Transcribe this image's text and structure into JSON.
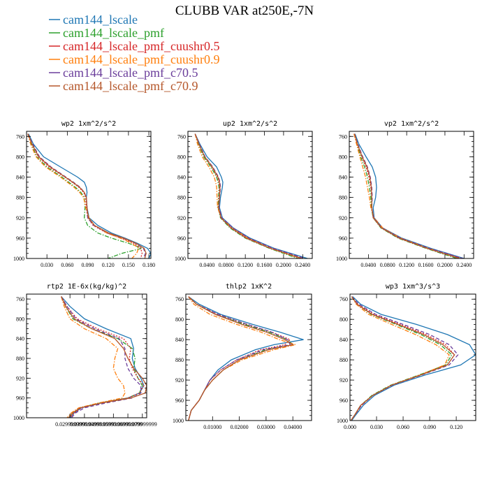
{
  "figure_title": "CLUBB VAR at250E,-7N",
  "legend": [
    {
      "name": "cam144_lscale",
      "color": "#1f77b4",
      "dash": "solid"
    },
    {
      "name": "cam144_lscale_pmf",
      "color": "#2ca02c",
      "dash": "dashdot"
    },
    {
      "name": "cam144_lscale_pmf_cuushr0.5",
      "color": "#d62728",
      "dash": "dot"
    },
    {
      "name": "cam144_lscale_pmf_cuushr0.9",
      "color": "#ff7f0e",
      "dash": "dashdot"
    },
    {
      "name": "cam144_lscale_pmf_c70.5",
      "color": "#6a3d9a",
      "dash": "dash"
    },
    {
      "name": "cam144_lscale_pmf_c70.9",
      "color": "#b5572b",
      "dash": "solid"
    }
  ],
  "chart_data": [
    {
      "type": "line",
      "title": "wp2  1xm^2/s^2",
      "ylim": [
        1000,
        750
      ],
      "yticks": [
        "760",
        "800",
        "840",
        "880",
        "920",
        "960",
        "1000"
      ],
      "xlim": [
        0.0,
        0.183
      ],
      "xticks": [
        0.03,
        0.06,
        0.09,
        0.12,
        0.15,
        0.18
      ],
      "xtick_labels": [
        "0.030",
        "0.060",
        "0.090",
        "0.120",
        "0.150",
        "0.180"
      ],
      "levels": [
        755,
        775,
        800,
        820,
        840,
        850,
        860,
        870,
        880,
        900,
        920,
        935,
        950,
        960,
        970,
        980,
        990,
        1000
      ],
      "series": [
        {
          "name": "cam144_lscale",
          "values": [
            0.003,
            0.01,
            0.025,
            0.05,
            0.075,
            0.085,
            0.088,
            0.089,
            0.088,
            0.089,
            0.092,
            0.105,
            0.125,
            0.145,
            0.163,
            0.178,
            0.183,
            0.18
          ]
        },
        {
          "name": "cam144_lscale_pmf",
          "values": [
            0.002,
            0.007,
            0.015,
            0.03,
            0.052,
            0.062,
            0.072,
            0.08,
            0.085,
            0.086,
            0.085,
            0.09,
            0.105,
            0.125,
            0.15,
            0.17,
            0.14,
            0.12
          ]
        },
        {
          "name": "cam144_lscale_pmf_cuushr0.5",
          "values": [
            0.002,
            0.008,
            0.017,
            0.033,
            0.056,
            0.067,
            0.077,
            0.084,
            0.087,
            0.088,
            0.09,
            0.098,
            0.118,
            0.14,
            0.158,
            0.168,
            0.17,
            0.168
          ]
        },
        {
          "name": "cam144_lscale_pmf_cuushr0.9",
          "values": [
            0.002,
            0.006,
            0.014,
            0.028,
            0.05,
            0.06,
            0.07,
            0.078,
            0.084,
            0.087,
            0.092,
            0.1,
            0.118,
            0.138,
            0.155,
            0.165,
            0.162,
            0.155
          ]
        },
        {
          "name": "cam144_lscale_pmf_c70.5",
          "values": [
            0.002,
            0.009,
            0.019,
            0.036,
            0.058,
            0.069,
            0.079,
            0.085,
            0.088,
            0.089,
            0.09,
            0.099,
            0.12,
            0.142,
            0.16,
            0.172,
            0.175,
            0.172
          ]
        },
        {
          "name": "cam144_lscale_pmf_c70.9",
          "values": [
            0.002,
            0.008,
            0.018,
            0.035,
            0.057,
            0.068,
            0.078,
            0.085,
            0.088,
            0.089,
            0.091,
            0.1,
            0.121,
            0.143,
            0.161,
            0.173,
            0.176,
            0.174
          ]
        }
      ]
    },
    {
      "type": "line",
      "title": "up2  1xm^2/s^2",
      "ylim": [
        1000,
        750
      ],
      "yticks": [
        "760",
        "800",
        "840",
        "880",
        "920",
        "960",
        "1000"
      ],
      "xlim": [
        0.0,
        0.26
      ],
      "xticks": [
        0.04,
        0.08,
        0.12,
        0.16,
        0.2,
        0.24
      ],
      "xtick_labels": [
        "0.0400",
        "0.0800",
        "0.1200",
        "0.1600",
        "0.2000",
        "0.2400"
      ],
      "levels": [
        755,
        775,
        800,
        820,
        840,
        850,
        860,
        880,
        900,
        920,
        940,
        960,
        980,
        1000
      ],
      "series": [
        {
          "name": "cam144_lscale",
          "values": [
            0.015,
            0.025,
            0.04,
            0.06,
            0.07,
            0.073,
            0.072,
            0.068,
            0.066,
            0.072,
            0.095,
            0.13,
            0.18,
            0.25
          ]
        },
        {
          "name": "cam144_lscale_pmf",
          "values": [
            0.015,
            0.022,
            0.033,
            0.048,
            0.06,
            0.063,
            0.065,
            0.064,
            0.063,
            0.068,
            0.088,
            0.12,
            0.17,
            0.23
          ]
        },
        {
          "name": "cam144_lscale_pmf_cuushr0.5",
          "values": [
            0.015,
            0.023,
            0.035,
            0.05,
            0.062,
            0.065,
            0.066,
            0.065,
            0.064,
            0.07,
            0.092,
            0.125,
            0.175,
            0.24
          ]
        },
        {
          "name": "cam144_lscale_pmf_cuushr0.9",
          "values": [
            0.015,
            0.02,
            0.03,
            0.044,
            0.055,
            0.058,
            0.06,
            0.061,
            0.062,
            0.07,
            0.093,
            0.126,
            0.172,
            0.235
          ]
        },
        {
          "name": "cam144_lscale_pmf_c70.5",
          "values": [
            0.015,
            0.024,
            0.036,
            0.052,
            0.064,
            0.067,
            0.068,
            0.066,
            0.065,
            0.071,
            0.094,
            0.128,
            0.178,
            0.245
          ]
        },
        {
          "name": "cam144_lscale_pmf_c70.9",
          "values": [
            0.015,
            0.023,
            0.035,
            0.051,
            0.063,
            0.066,
            0.067,
            0.066,
            0.064,
            0.069,
            0.09,
            0.122,
            0.172,
            0.238
          ]
        }
      ]
    },
    {
      "type": "line",
      "title": "vp2  1xm^2/s^2",
      "ylim": [
        1000,
        750
      ],
      "yticks": [
        "760",
        "800",
        "840",
        "880",
        "920",
        "960",
        "1000"
      ],
      "xlim": [
        0.0,
        0.26
      ],
      "xticks": [
        0.04,
        0.08,
        0.12,
        0.16,
        0.2,
        0.24
      ],
      "xtick_labels": [
        "0.0400",
        "0.0800",
        "0.1200",
        "0.1600",
        "0.2000",
        "0.2400"
      ],
      "levels": [
        755,
        775,
        800,
        820,
        840,
        860,
        880,
        900,
        920,
        940,
        960,
        980,
        1000
      ],
      "series": [
        {
          "name": "cam144_lscale",
          "values": [
            0.012,
            0.02,
            0.035,
            0.048,
            0.055,
            0.057,
            0.055,
            0.05,
            0.052,
            0.07,
            0.11,
            0.17,
            0.24
          ]
        },
        {
          "name": "cam144_lscale_pmf",
          "values": [
            0.01,
            0.016,
            0.024,
            0.032,
            0.038,
            0.042,
            0.045,
            0.046,
            0.05,
            0.066,
            0.102,
            0.16,
            0.225
          ]
        },
        {
          "name": "cam144_lscale_pmf_cuushr0.5",
          "values": [
            0.01,
            0.017,
            0.026,
            0.035,
            0.041,
            0.045,
            0.047,
            0.047,
            0.051,
            0.068,
            0.106,
            0.165,
            0.235
          ]
        },
        {
          "name": "cam144_lscale_pmf_cuushr0.9",
          "values": [
            0.01,
            0.015,
            0.022,
            0.028,
            0.034,
            0.038,
            0.042,
            0.045,
            0.052,
            0.07,
            0.108,
            0.166,
            0.232
          ]
        },
        {
          "name": "cam144_lscale_pmf_c70.5",
          "values": [
            0.011,
            0.018,
            0.028,
            0.038,
            0.044,
            0.047,
            0.048,
            0.047,
            0.051,
            0.068,
            0.107,
            0.167,
            0.238
          ]
        },
        {
          "name": "cam144_lscale_pmf_c70.9",
          "values": [
            0.011,
            0.017,
            0.027,
            0.037,
            0.043,
            0.046,
            0.047,
            0.047,
            0.05,
            0.067,
            0.104,
            0.162,
            0.23
          ]
        }
      ]
    },
    {
      "type": "line",
      "title": "rtp2  1E-6x(kg/kg)^2",
      "ylim": [
        1000,
        750
      ],
      "yticks": [
        "760",
        "800",
        "840",
        "880",
        "920",
        "960",
        "1000"
      ],
      "xlim": [
        0.0,
        0.083
      ],
      "xticks": [
        0.03,
        0.04,
        0.05,
        0.06,
        0.07,
        0.08
      ],
      "xtick_labels": [
        "0.029999999",
        "0.039999999",
        "0.049999999",
        "0.059999999",
        "0.069999999",
        "0.079999999"
      ],
      "levels": [
        755,
        775,
        800,
        820,
        840,
        860,
        880,
        900,
        920,
        935,
        950,
        960,
        970,
        980,
        990,
        1000
      ],
      "series": [
        {
          "name": "cam144_lscale",
          "values": [
            0.024,
            0.03,
            0.04,
            0.055,
            0.072,
            0.074,
            0.073,
            0.075,
            0.079,
            0.081,
            0.078,
            0.07,
            0.052,
            0.038,
            0.033,
            0.03
          ]
        },
        {
          "name": "cam144_lscale_pmf",
          "values": [
            0.024,
            0.027,
            0.032,
            0.045,
            0.063,
            0.073,
            0.075,
            0.074,
            0.077,
            0.08,
            0.078,
            0.07,
            0.05,
            0.037,
            0.032,
            0.029
          ]
        },
        {
          "name": "cam144_lscale_pmf_cuushr0.5",
          "values": [
            0.024,
            0.028,
            0.035,
            0.049,
            0.067,
            0.072,
            0.071,
            0.073,
            0.077,
            0.081,
            0.078,
            0.07,
            0.051,
            0.038,
            0.033,
            0.03
          ]
        },
        {
          "name": "cam144_lscale_pmf_cuushr0.9",
          "values": [
            0.024,
            0.026,
            0.03,
            0.04,
            0.055,
            0.063,
            0.061,
            0.06,
            0.063,
            0.067,
            0.068,
            0.066,
            0.05,
            0.036,
            0.031,
            0.028
          ]
        },
        {
          "name": "cam144_lscale_pmf_c70.5",
          "values": [
            0.024,
            0.028,
            0.034,
            0.047,
            0.064,
            0.068,
            0.068,
            0.07,
            0.074,
            0.079,
            0.079,
            0.073,
            0.055,
            0.04,
            0.034,
            0.031
          ]
        },
        {
          "name": "cam144_lscale_pmf_c70.9",
          "values": [
            0.024,
            0.027,
            0.033,
            0.045,
            0.061,
            0.067,
            0.07,
            0.074,
            0.08,
            0.083,
            0.082,
            0.072,
            0.052,
            0.037,
            0.032,
            0.029
          ]
        }
      ]
    },
    {
      "type": "line",
      "title": "thlp2  1xK^2",
      "ylim": [
        1000,
        750
      ],
      "yticks": [
        "760",
        "800",
        "840",
        "880",
        "920",
        "960",
        "1000"
      ],
      "xlim": [
        0.0,
        0.047
      ],
      "xticks": [
        0.01,
        0.02,
        0.03,
        0.04
      ],
      "xtick_labels": [
        "0.01000",
        "0.02000",
        "0.03000",
        "0.04000"
      ],
      "levels": [
        755,
        770,
        790,
        810,
        825,
        840,
        850,
        860,
        880,
        900,
        920,
        940,
        960,
        980,
        1000
      ],
      "series": [
        {
          "name": "cam144_lscale",
          "values": [
            0.001,
            0.005,
            0.013,
            0.025,
            0.035,
            0.044,
            0.033,
            0.026,
            0.017,
            0.012,
            0.009,
            0.007,
            0.005,
            0.002,
            0.001
          ]
        },
        {
          "name": "cam144_lscale_pmf",
          "values": [
            0.001,
            0.004,
            0.011,
            0.022,
            0.031,
            0.038,
            0.04,
            0.03,
            0.02,
            0.014,
            0.01,
            0.007,
            0.005,
            0.002,
            0.001
          ]
        },
        {
          "name": "cam144_lscale_pmf_cuushr0.5",
          "values": [
            0.001,
            0.004,
            0.012,
            0.023,
            0.032,
            0.039,
            0.037,
            0.028,
            0.019,
            0.013,
            0.009,
            0.007,
            0.005,
            0.002,
            0.001
          ]
        },
        {
          "name": "cam144_lscale_pmf_cuushr0.9",
          "values": [
            0.001,
            0.003,
            0.009,
            0.019,
            0.028,
            0.035,
            0.041,
            0.033,
            0.021,
            0.014,
            0.01,
            0.007,
            0.005,
            0.002,
            0.001
          ]
        },
        {
          "name": "cam144_lscale_pmf_c70.5",
          "values": [
            0.001,
            0.004,
            0.012,
            0.023,
            0.032,
            0.038,
            0.039,
            0.029,
            0.019,
            0.013,
            0.009,
            0.007,
            0.005,
            0.002,
            0.001
          ]
        },
        {
          "name": "cam144_lscale_pmf_c70.9",
          "values": [
            0.001,
            0.004,
            0.011,
            0.021,
            0.03,
            0.037,
            0.04,
            0.031,
            0.02,
            0.014,
            0.01,
            0.007,
            0.005,
            0.002,
            0.001
          ]
        }
      ]
    },
    {
      "type": "line",
      "title": "wp3  1xm^3/s^3",
      "ylim": [
        1000,
        750
      ],
      "yticks": [
        "760",
        "800",
        "840",
        "880",
        "920",
        "960",
        "1000"
      ],
      "xlim": [
        0.0,
        0.142
      ],
      "xticks": [
        0.0,
        0.03,
        0.06,
        0.09,
        0.12
      ],
      "xtick_labels": [
        "0.000",
        "0.030",
        "0.060",
        "0.090",
        "0.120"
      ],
      "levels": [
        755,
        770,
        790,
        810,
        830,
        850,
        870,
        890,
        910,
        930,
        950,
        970,
        990,
        1000
      ],
      "series": [
        {
          "name": "cam144_lscale",
          "values": [
            0.003,
            0.012,
            0.035,
            0.075,
            0.11,
            0.135,
            0.142,
            0.125,
            0.085,
            0.05,
            0.028,
            0.015,
            0.006,
            0.002
          ]
        },
        {
          "name": "cam144_lscale_pmf",
          "values": [
            0.002,
            0.008,
            0.024,
            0.052,
            0.08,
            0.102,
            0.115,
            0.108,
            0.078,
            0.046,
            0.025,
            0.012,
            0.005,
            0.001
          ]
        },
        {
          "name": "cam144_lscale_pmf_cuushr0.5",
          "values": [
            0.002,
            0.009,
            0.027,
            0.057,
            0.086,
            0.108,
            0.118,
            0.11,
            0.08,
            0.047,
            0.026,
            0.013,
            0.005,
            0.001
          ]
        },
        {
          "name": "cam144_lscale_pmf_cuushr0.9",
          "values": [
            0.002,
            0.007,
            0.021,
            0.047,
            0.074,
            0.097,
            0.112,
            0.107,
            0.079,
            0.047,
            0.026,
            0.012,
            0.005,
            0.001
          ]
        },
        {
          "name": "cam144_lscale_pmf_c70.5",
          "values": [
            0.002,
            0.01,
            0.029,
            0.06,
            0.09,
            0.112,
            0.122,
            0.112,
            0.081,
            0.048,
            0.026,
            0.013,
            0.005,
            0.001
          ]
        },
        {
          "name": "cam144_lscale_pmf_c70.9",
          "values": [
            0.002,
            0.008,
            0.025,
            0.054,
            0.083,
            0.105,
            0.118,
            0.11,
            0.08,
            0.047,
            0.026,
            0.012,
            0.005,
            0.001
          ]
        }
      ]
    }
  ]
}
